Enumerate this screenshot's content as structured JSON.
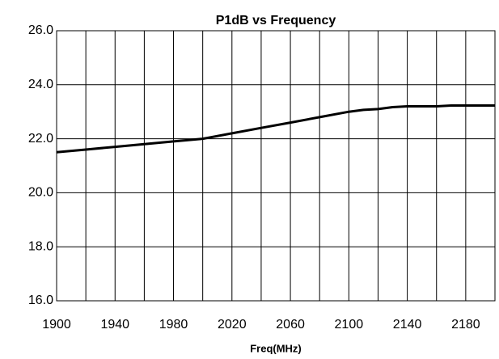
{
  "chart_data": {
    "type": "line",
    "title": "P1dB vs Frequency",
    "x_label": "Freq(MHz)",
    "x": [
      1900,
      1920,
      1940,
      1960,
      1980,
      2000,
      2020,
      2040,
      2060,
      2080,
      2100,
      2110,
      2120,
      2130,
      2140,
      2160,
      2170,
      2200
    ],
    "series": [
      {
        "name": "P1dB",
        "color": "#000000",
        "values": [
          21.5,
          21.6,
          21.7,
          21.8,
          21.9,
          22.0,
          22.2,
          22.4,
          22.6,
          22.8,
          23.0,
          23.07,
          23.1,
          23.17,
          23.2,
          23.2,
          23.23,
          23.23
        ]
      }
    ],
    "xlim": [
      1900,
      2200
    ],
    "xticks": [
      1900,
      1940,
      1980,
      2020,
      2060,
      2100,
      2140,
      2180
    ],
    "ylim": [
      16,
      26
    ],
    "yticks": [
      {
        "value": 16,
        "label": "16.0"
      },
      {
        "value": 18,
        "label": "18.0"
      },
      {
        "value": 20,
        "label": "20.0"
      },
      {
        "value": 22,
        "label": "22.0"
      },
      {
        "value": 24,
        "label": "24.0"
      },
      {
        "value": 26,
        "label": "26.0"
      }
    ],
    "grid": true
  }
}
